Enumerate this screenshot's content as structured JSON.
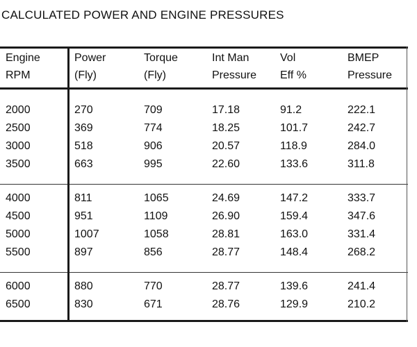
{
  "title": "CALCULATED POWER AND ENGINE PRESSURES",
  "columns": [
    {
      "line1": "Engine",
      "line2": "RPM"
    },
    {
      "line1": "Power",
      "line2": "(Fly)"
    },
    {
      "line1": "Torque",
      "line2": "(Fly)"
    },
    {
      "line1": "Int Man",
      "line2": "Pressure"
    },
    {
      "line1": "Vol",
      "line2": "Eff %"
    },
    {
      "line1": "BMEP",
      "line2": "Pressure"
    }
  ],
  "groups": [
    {
      "rows": [
        [
          "2000",
          "270",
          "709",
          "17.18",
          "91.2",
          "222.1"
        ],
        [
          "2500",
          "369",
          "774",
          "18.25",
          "101.7",
          "242.7"
        ],
        [
          "3000",
          "518",
          "906",
          "20.57",
          "118.9",
          "284.0"
        ],
        [
          "3500",
          "663",
          "995",
          "22.60",
          "133.6",
          "311.8"
        ]
      ]
    },
    {
      "rows": [
        [
          "4000",
          "811",
          "1065",
          "24.69",
          "147.2",
          "333.7"
        ],
        [
          "4500",
          "951",
          "1109",
          "26.90",
          "159.4",
          "347.6"
        ],
        [
          "5000",
          "1007",
          "1058",
          "28.81",
          "163.0",
          "331.4"
        ],
        [
          "5500",
          "897",
          "856",
          "28.77",
          "148.4",
          "268.2"
        ]
      ]
    },
    {
      "rows": [
        [
          "6000",
          "880",
          "770",
          "28.77",
          "139.6",
          "241.4"
        ],
        [
          "6500",
          "830",
          "671",
          "28.76",
          "129.9",
          "210.2"
        ]
      ]
    }
  ]
}
